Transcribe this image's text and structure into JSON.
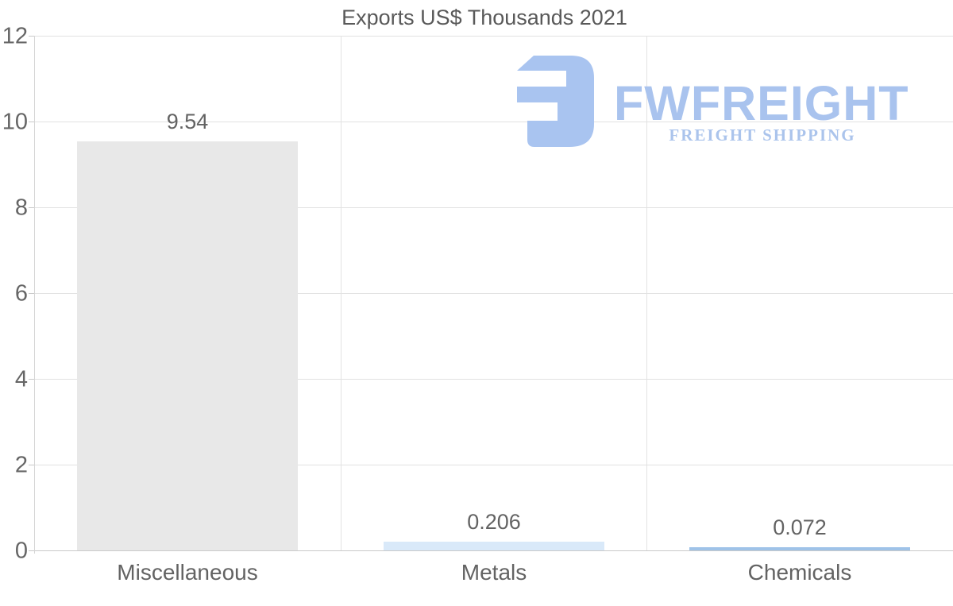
{
  "title": "Exports US$ Thousands 2021",
  "watermark": {
    "brand": "FWFREIGHT",
    "tagline": "FREIGHT SHIPPING",
    "icon_color": "#a9c4f0",
    "text_color": "#a9c3ee"
  },
  "chart_data": {
    "type": "bar",
    "title": "Exports US$ Thousands 2021",
    "categories": [
      "Miscellaneous",
      "Metals",
      "Chemicals"
    ],
    "values": [
      9.54,
      0.206,
      0.072
    ],
    "value_labels": [
      "9.54",
      "0.206",
      "0.072"
    ],
    "bar_colors": [
      "#e8e8e8",
      "#d9e9f9",
      "#9fc3e8"
    ],
    "xlabel": "",
    "ylabel": "",
    "ylim": [
      0,
      12
    ],
    "yticks": [
      0,
      2,
      4,
      6,
      8,
      10,
      12
    ],
    "grid": "on",
    "legend": "none"
  }
}
